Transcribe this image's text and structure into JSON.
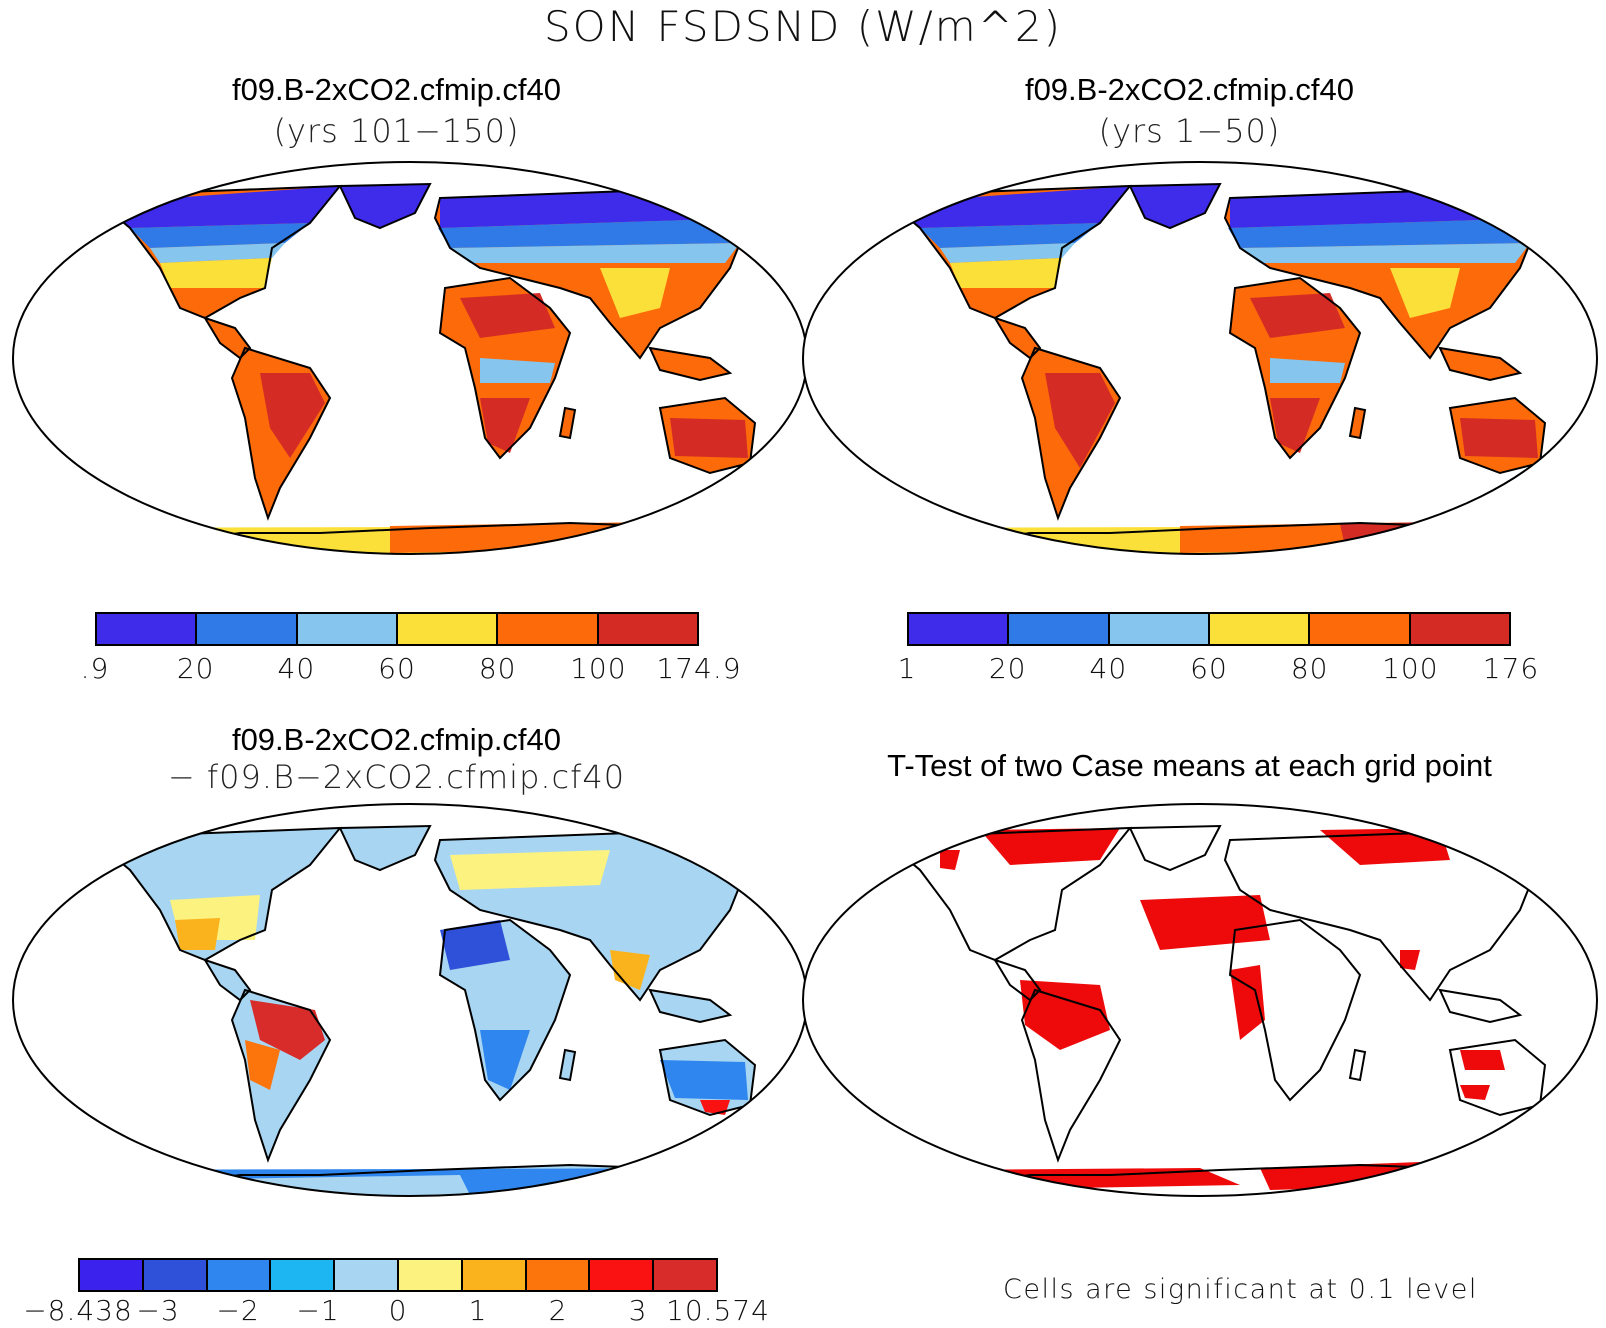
{
  "figure_title": "SON FSDSND (W/m^2)",
  "panels": {
    "top_left": {
      "case": "f09.B-2xCO2.cfmip.cf40",
      "period": "(yrs 101−150)"
    },
    "top_right": {
      "case": "f09.B-2xCO2.cfmip.cf40",
      "period": "(yrs 1−50)"
    },
    "bottom_left": {
      "case": "f09.B-2xCO2.cfmip.cf40",
      "minus_case": "− f09.B−2xCO2.cfmip.cf40"
    },
    "bottom_right": {
      "title": "T-Test of two Case means at each grid point",
      "note": "Cells are significant at 0.1 level"
    }
  },
  "colorbars": {
    "abs_left": {
      "colors": [
        "#3f2bea",
        "#2f7ae6",
        "#85c5ee",
        "#fbe03a",
        "#fc6a0a",
        "#d52b25"
      ],
      "ticks": [
        ".9",
        "20",
        "40",
        "60",
        "80",
        "100",
        "174.9"
      ]
    },
    "abs_right": {
      "colors": [
        "#3f2bea",
        "#2f7ae6",
        "#85c5ee",
        "#fbe03a",
        "#fc6a0a",
        "#d52b25"
      ],
      "ticks": [
        "1",
        "20",
        "40",
        "60",
        "80",
        "100",
        "176"
      ]
    },
    "diff": {
      "colors": [
        "#3b22ec",
        "#2f50d8",
        "#2f86ee",
        "#1db5f2",
        "#a8d6f2",
        "#fcf280",
        "#fab31c",
        "#fb740c",
        "#fa1212",
        "#d72c2a"
      ],
      "ticks": [
        "−8.438",
        "−3",
        "−2",
        "−1",
        "0",
        "1",
        "2",
        "3",
        "10.574"
      ]
    }
  },
  "colors": {
    "significant": "#ee0a0a",
    "coastline": "#000000"
  }
}
